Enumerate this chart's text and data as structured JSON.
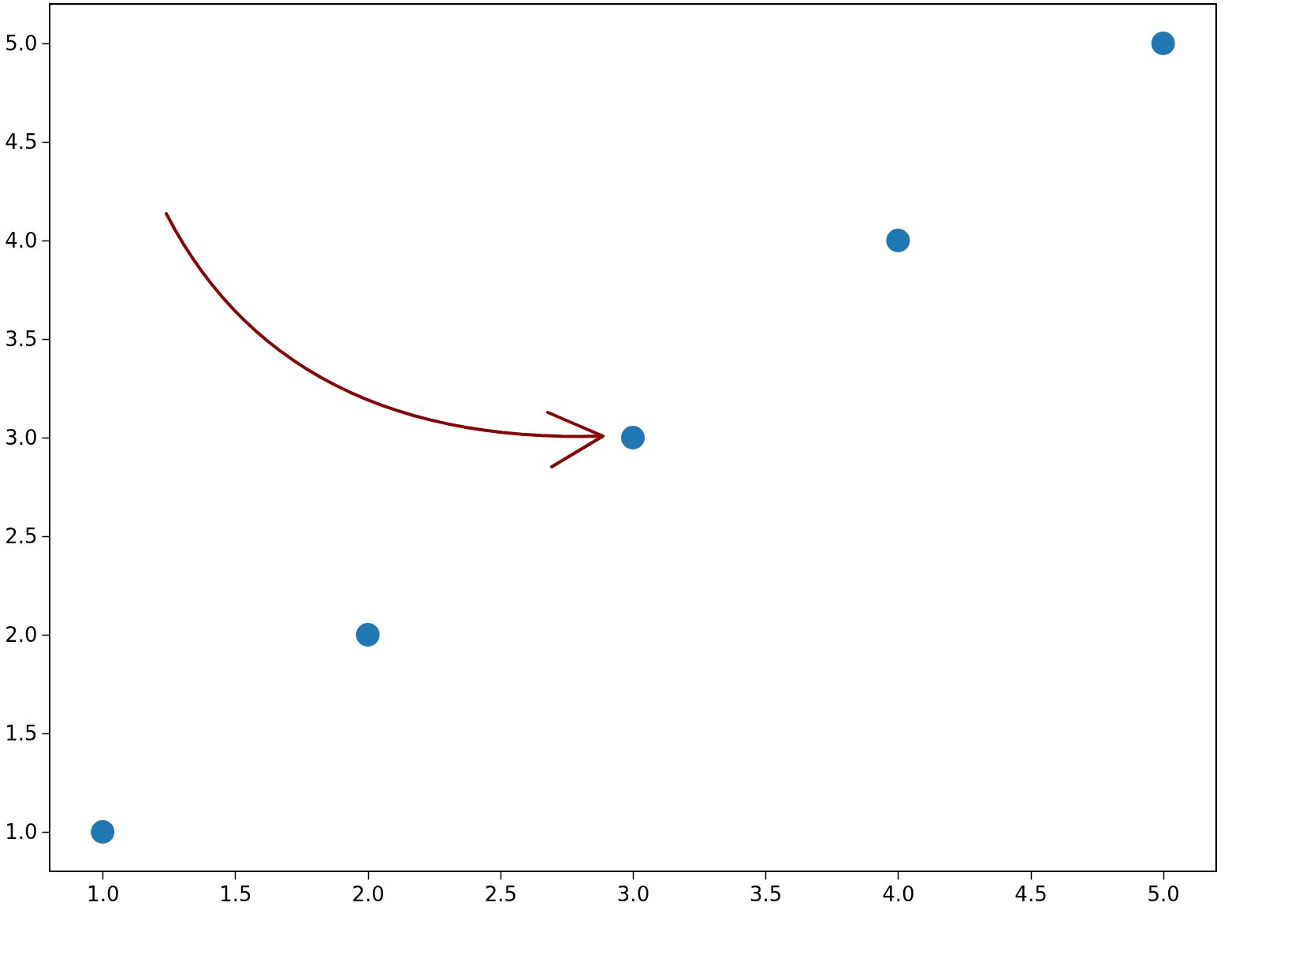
{
  "chart_data": {
    "type": "scatter",
    "x": [
      1,
      2,
      3,
      4,
      5
    ],
    "series": [
      {
        "color": "#1f77b4",
        "values": [
          1,
          2,
          3,
          4,
          5
        ]
      }
    ],
    "marker": "circle",
    "grid": false,
    "xlim": [
      0.8,
      5.2
    ],
    "ylim": [
      0.8,
      5.2
    ],
    "xticks": [
      {
        "value": 1,
        "label": "1.0"
      },
      {
        "value": 1.5,
        "label": "1.5"
      },
      {
        "value": 2,
        "label": "2.0"
      },
      {
        "value": 2.5,
        "label": "2.5"
      },
      {
        "value": 3,
        "label": "3.0"
      },
      {
        "value": 3.5,
        "label": "3.5"
      },
      {
        "value": 4,
        "label": "4.0"
      },
      {
        "value": 4.5,
        "label": "4.5"
      },
      {
        "value": 5,
        "label": "5.0"
      }
    ],
    "yticks": [
      {
        "value": 1,
        "label": "1.0"
      },
      {
        "value": 1.5,
        "label": "1.5"
      },
      {
        "value": 2,
        "label": "2.0"
      },
      {
        "value": 2.5,
        "label": "2.5"
      },
      {
        "value": 3,
        "label": "3.0"
      },
      {
        "value": 3.5,
        "label": "3.5"
      },
      {
        "value": 4,
        "label": "4.0"
      },
      {
        "value": 4.5,
        "label": "4.5"
      },
      {
        "value": 5,
        "label": "5.0"
      }
    ]
  }
}
